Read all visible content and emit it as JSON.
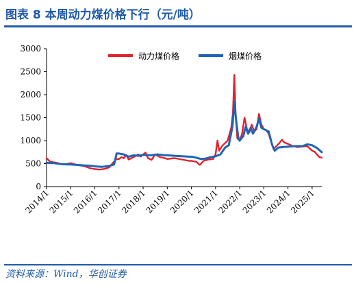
{
  "figure": {
    "title": "图表 8    本周动力煤价格下行（元/吨）",
    "source": "资料来源：Wind，华创证券"
  },
  "chart_data": {
    "type": "line",
    "title": "",
    "xlabel": "",
    "ylabel": "",
    "x_ticks": [
      "2014/1",
      "2015/1",
      "2016/1",
      "2017/1",
      "2018/1",
      "2019/1",
      "2020/1",
      "2021/1",
      "2022/1",
      "2023/1",
      "2024/1",
      "2025/1"
    ],
    "y_ticks": [
      0,
      500,
      1000,
      1500,
      2000,
      2500,
      3000
    ],
    "ylim": [
      0,
      3000
    ],
    "xlim": [
      2014.0,
      2025.4
    ],
    "grid": false,
    "legend_position": "top-center",
    "series": [
      {
        "name": "动力煤价格",
        "color": "#e3202b",
        "points": [
          [
            2014.0,
            620
          ],
          [
            2014.15,
            540
          ],
          [
            2014.4,
            520
          ],
          [
            2014.7,
            480
          ],
          [
            2014.9,
            500
          ],
          [
            2015.0,
            510
          ],
          [
            2015.2,
            480
          ],
          [
            2015.4,
            460
          ],
          [
            2015.6,
            440
          ],
          [
            2015.8,
            400
          ],
          [
            2016.0,
            380
          ],
          [
            2016.2,
            370
          ],
          [
            2016.4,
            385
          ],
          [
            2016.6,
            420
          ],
          [
            2016.75,
            520
          ],
          [
            2016.9,
            600
          ],
          [
            2017.0,
            600
          ],
          [
            2017.1,
            640
          ],
          [
            2017.2,
            620
          ],
          [
            2017.3,
            690
          ],
          [
            2017.4,
            590
          ],
          [
            2017.6,
            640
          ],
          [
            2017.8,
            700
          ],
          [
            2017.9,
            650
          ],
          [
            2018.0,
            700
          ],
          [
            2018.1,
            740
          ],
          [
            2018.2,
            620
          ],
          [
            2018.35,
            580
          ],
          [
            2018.5,
            700
          ],
          [
            2018.7,
            640
          ],
          [
            2018.9,
            620
          ],
          [
            2019.0,
            600
          ],
          [
            2019.3,
            620
          ],
          [
            2019.6,
            590
          ],
          [
            2019.9,
            560
          ],
          [
            2020.0,
            560
          ],
          [
            2020.2,
            540
          ],
          [
            2020.35,
            470
          ],
          [
            2020.5,
            560
          ],
          [
            2020.7,
            590
          ],
          [
            2020.9,
            600
          ],
          [
            2021.0,
            700
          ],
          [
            2021.08,
            1000
          ],
          [
            2021.15,
            780
          ],
          [
            2021.3,
            900
          ],
          [
            2021.5,
            1000
          ],
          [
            2021.65,
            1280
          ],
          [
            2021.72,
            1600
          ],
          [
            2021.78,
            2430
          ],
          [
            2021.83,
            1600
          ],
          [
            2021.9,
            1050
          ],
          [
            2022.0,
            1000
          ],
          [
            2022.1,
            1150
          ],
          [
            2022.2,
            1500
          ],
          [
            2022.3,
            1250
          ],
          [
            2022.4,
            1180
          ],
          [
            2022.5,
            1350
          ],
          [
            2022.6,
            1200
          ],
          [
            2022.7,
            1250
          ],
          [
            2022.8,
            1580
          ],
          [
            2022.9,
            1350
          ],
          [
            2023.0,
            1250
          ],
          [
            2023.1,
            1230
          ],
          [
            2023.2,
            1150
          ],
          [
            2023.3,
            980
          ],
          [
            2023.4,
            820
          ],
          [
            2023.5,
            870
          ],
          [
            2023.65,
            950
          ],
          [
            2023.75,
            1020
          ],
          [
            2023.85,
            960
          ],
          [
            2024.0,
            930
          ],
          [
            2024.2,
            880
          ],
          [
            2024.4,
            860
          ],
          [
            2024.6,
            870
          ],
          [
            2024.8,
            880
          ],
          [
            2025.0,
            780
          ],
          [
            2025.1,
            760
          ],
          [
            2025.2,
            700
          ],
          [
            2025.3,
            640
          ],
          [
            2025.4,
            630
          ]
        ]
      },
      {
        "name": "烟煤价格",
        "color": "#1f64b4",
        "points": [
          [
            2014.0,
            520
          ],
          [
            2014.3,
            510
          ],
          [
            2014.6,
            490
          ],
          [
            2014.9,
            480
          ],
          [
            2015.0,
            480
          ],
          [
            2015.3,
            470
          ],
          [
            2015.6,
            460
          ],
          [
            2015.9,
            450
          ],
          [
            2016.0,
            440
          ],
          [
            2016.3,
            430
          ],
          [
            2016.6,
            450
          ],
          [
            2016.8,
            480
          ],
          [
            2016.9,
            720
          ],
          [
            2017.0,
            720
          ],
          [
            2017.2,
            700
          ],
          [
            2017.4,
            650
          ],
          [
            2017.6,
            680
          ],
          [
            2017.8,
            670
          ],
          [
            2018.0,
            690
          ],
          [
            2018.3,
            680
          ],
          [
            2018.6,
            700
          ],
          [
            2018.9,
            680
          ],
          [
            2019.0,
            680
          ],
          [
            2019.3,
            670
          ],
          [
            2019.6,
            660
          ],
          [
            2019.9,
            650
          ],
          [
            2020.0,
            650
          ],
          [
            2020.2,
            630
          ],
          [
            2020.4,
            600
          ],
          [
            2020.6,
            610
          ],
          [
            2020.8,
            640
          ],
          [
            2021.0,
            660
          ],
          [
            2021.2,
            700
          ],
          [
            2021.4,
            850
          ],
          [
            2021.55,
            900
          ],
          [
            2021.7,
            1300
          ],
          [
            2021.78,
            1850
          ],
          [
            2021.85,
            1450
          ],
          [
            2021.95,
            1050
          ],
          [
            2022.0,
            1000
          ],
          [
            2022.15,
            1100
          ],
          [
            2022.25,
            1300
          ],
          [
            2022.35,
            1150
          ],
          [
            2022.45,
            1280
          ],
          [
            2022.55,
            1150
          ],
          [
            2022.7,
            1300
          ],
          [
            2022.8,
            1480
          ],
          [
            2022.9,
            1280
          ],
          [
            2023.0,
            1250
          ],
          [
            2023.2,
            1200
          ],
          [
            2023.35,
            900
          ],
          [
            2023.45,
            780
          ],
          [
            2023.6,
            850
          ],
          [
            2023.8,
            860
          ],
          [
            2024.0,
            870
          ],
          [
            2024.3,
            880
          ],
          [
            2024.6,
            880
          ],
          [
            2024.8,
            920
          ],
          [
            2025.0,
            900
          ],
          [
            2025.2,
            840
          ],
          [
            2025.4,
            750
          ]
        ]
      }
    ]
  }
}
